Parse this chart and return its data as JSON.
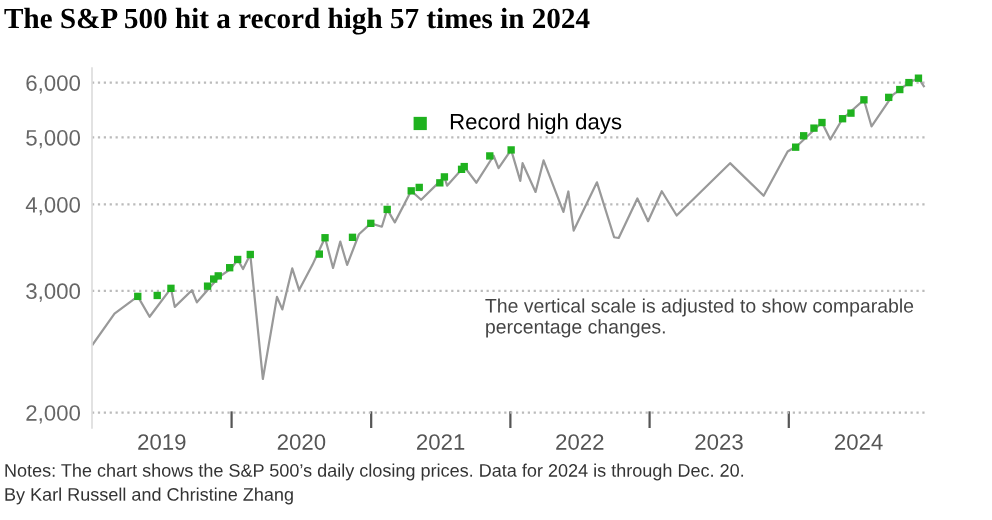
{
  "chart_data": {
    "type": "line",
    "title": "The S&P 500 hit a record high 57 times in 2024",
    "annotations": [
      "The vertical scale is adjusted to show comparable\npercentage changes.",
      "Notes: The chart shows the S&P 500’s daily closing prices. Data for 2024 is through Dec. 20.",
      "By Karl Russell and Christine Zhang"
    ],
    "log": true,
    "grid": "y",
    "legend": "top",
    "xlim": [
      "2018-12-31",
      "2024-12-31"
    ],
    "xticks": [
      {
        "value": "2019-07-02",
        "label": "2019"
      },
      {
        "value": "2020-01-01",
        "label": null
      },
      {
        "value": "2020-07-02",
        "label": "2020"
      },
      {
        "value": "2021-01-01",
        "label": null
      },
      {
        "value": "2021-07-02",
        "label": "2021"
      },
      {
        "value": "2022-01-01",
        "label": null
      },
      {
        "value": "2022-07-02",
        "label": "2022"
      },
      {
        "value": "2023-01-01",
        "label": null
      },
      {
        "value": "2023-07-02",
        "label": "2023"
      },
      {
        "value": "2024-01-01",
        "label": null
      },
      {
        "value": "2024-07-02",
        "label": "2024"
      }
    ],
    "ylim": [
      1900,
      6300
    ],
    "yticks": [
      {
        "value": 2000,
        "label": "2,000"
      },
      {
        "value": 3000,
        "label": "3,000"
      },
      {
        "value": 4000,
        "label": "4,000"
      },
      {
        "value": 5000,
        "label": "5,000"
      },
      {
        "value": 6000,
        "label": "6,000"
      }
    ],
    "series": [
      {
        "color": "#999999",
        "marker": "none",
        "x": [
          "2019-01-02",
          "2019-02-28",
          "2019-04-30",
          "2019-05-31",
          "2019-07-26",
          "2019-08-05",
          "2019-09-19",
          "2019-10-02",
          "2019-11-29",
          "2019-12-31",
          "2020-01-17",
          "2020-01-31",
          "2020-02-19",
          "2020-03-23",
          "2020-04-29",
          "2020-05-13",
          "2020-06-08",
          "2020-06-26",
          "2020-07-31",
          "2020-09-02",
          "2020-09-23",
          "2020-10-12",
          "2020-10-30",
          "2020-11-30",
          "2020-12-31",
          "2021-01-29",
          "2021-02-12",
          "2021-03-04",
          "2021-04-16",
          "2021-05-12",
          "2021-07-12",
          "2021-07-19",
          "2021-09-02",
          "2021-10-04",
          "2021-11-18",
          "2021-12-01",
          "2022-01-03",
          "2022-01-27",
          "2022-02-02",
          "2022-03-08",
          "2022-03-29",
          "2022-05-20",
          "2022-06-02",
          "2022-06-16",
          "2022-08-16",
          "2022-09-30",
          "2022-10-12",
          "2022-11-30",
          "2022-12-28",
          "2023-02-02",
          "2023-03-13",
          "2023-07-31",
          "2023-10-27",
          "2023-12-29",
          "2024-01-24",
          "2024-03-28",
          "2024-04-19",
          "2024-05-21",
          "2024-07-16",
          "2024-08-05",
          "2024-09-30",
          "2024-11-11",
          "2024-12-06",
          "2024-12-20"
        ],
        "values": [
          2510,
          2780,
          2945,
          2752,
          3025,
          2844,
          3006,
          2887,
          3141,
          3231,
          3330,
          3226,
          3386,
          2237,
          2940,
          2820,
          3232,
          3009,
          3271,
          3580,
          3237,
          3534,
          3270,
          3622,
          3756,
          3714,
          3934,
          3768,
          4185,
          4063,
          4384,
          4258,
          4537,
          4300,
          4704,
          4513,
          4796,
          4326,
          4589,
          4170,
          4631,
          3901,
          4176,
          3667,
          4305,
          3586,
          3577,
          4080,
          3783,
          4179,
          3855,
          4589,
          4117,
          4770,
          4868,
          5254,
          4967,
          5321,
          5667,
          5186,
          5762,
          6001,
          6090,
          5930
        ]
      },
      {
        "type": "scatter",
        "name": "Record high days",
        "color": "#1fb21f",
        "marker": "square",
        "x": [
          "2019-04-30",
          "2019-06-20",
          "2019-07-26",
          "2019-10-30",
          "2019-11-15",
          "2019-11-27",
          "2019-12-27",
          "2020-01-17",
          "2020-02-19",
          "2020-08-18",
          "2020-09-02",
          "2020-11-13",
          "2020-12-31",
          "2021-02-12",
          "2021-04-16",
          "2021-05-07",
          "2021-06-30",
          "2021-07-12",
          "2021-08-26",
          "2021-09-02",
          "2021-11-08",
          "2022-01-03",
          "2024-01-19",
          "2024-02-09",
          "2024-03-07",
          "2024-03-28",
          "2024-05-21",
          "2024-06-12",
          "2024-07-16",
          "2024-09-19",
          "2024-10-18",
          "2024-11-11",
          "2024-12-06"
        ],
        "values": [
          2945,
          2954,
          3025,
          3047,
          3120,
          3153,
          3240,
          3330,
          3386,
          3390,
          3580,
          3585,
          3756,
          3934,
          4185,
          4233,
          4298,
          4384,
          4496,
          4537,
          4701,
          4796,
          4840,
          5027,
          5157,
          5254,
          5321,
          5421,
          5667,
          5713,
          5864,
          6001,
          6090
        ]
      }
    ]
  }
}
